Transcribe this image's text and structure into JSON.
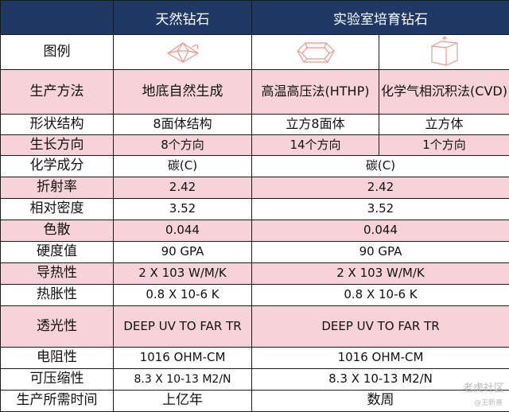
{
  "header": {
    "natural": "天然钻石",
    "lab": "实验室培育钻石"
  },
  "legend_label": "图例",
  "rows": [
    {
      "label": "生产方法",
      "natural": "地底自然生成",
      "hthp": "高温高压法(HTHP)",
      "cvd": "化学气相沉积法(CVD)"
    },
    {
      "label": "形状结构",
      "natural": "8面体结构",
      "hthp": "立方8面体",
      "cvd": "立方体"
    },
    {
      "label": "生长方向",
      "natural": "8个方向",
      "hthp": "14个方向",
      "cvd": "1个方向"
    },
    {
      "label": "化学成分",
      "natural": "碳(C)",
      "lab": "碳(C)"
    },
    {
      "label": "折射率",
      "natural": "2.42",
      "lab": "2.42"
    },
    {
      "label": "相对密度",
      "natural": "3.52",
      "lab": "3.52"
    },
    {
      "label": "色散",
      "natural": "0.044",
      "lab": "0.044"
    },
    {
      "label": "硬度值",
      "natural": "90 GPA",
      "lab": "90 GPA"
    },
    {
      "label": "导热性",
      "natural": "2 X 103 W/M/K",
      "lab": "2 X 103 W/M/K"
    },
    {
      "label": "热胀性",
      "natural": "0.8 X 10-6 K",
      "lab": "0.8 X 10-6 K"
    },
    {
      "label": "透光性",
      "natural": "DEEP UV TO FAR TR",
      "lab": "DEEP UV TO FAR TR"
    },
    {
      "label": "电阻性",
      "natural": "1016 OHM-CM",
      "lab": "1016 OHM-CM"
    },
    {
      "label": "可压缩性",
      "natural": "8.3 X 10-13 M2/N",
      "lab": "8.3 X 10-13 M2/N"
    },
    {
      "label": "生产所需时间",
      "natural": "上亿年",
      "lab": "数周"
    }
  ],
  "icons": {
    "natural": "octahedron-crystal-icon",
    "hthp": "cuboctahedron-crystal-icon",
    "cvd": "cube-crystal-icon"
  },
  "colors": {
    "header_bg": "#1f3864",
    "pink_row": "#f7d3d7",
    "icon_stroke": "#e8998f"
  },
  "watermark": {
    "brand": "老虎社区",
    "author": "@王新喜"
  }
}
